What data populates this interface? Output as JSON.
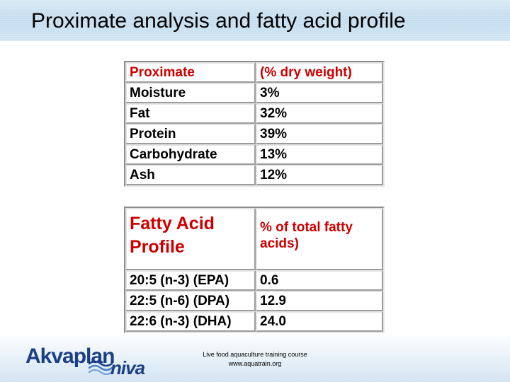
{
  "slide": {
    "title": "Proximate analysis and fatty acid profile"
  },
  "proximate_table": {
    "header": [
      "Proximate",
      "(% dry weight)"
    ],
    "rows": [
      [
        "Moisture",
        "3%"
      ],
      [
        "Fat",
        "32%"
      ],
      [
        "Protein",
        "39%"
      ],
      [
        "Carbohydrate",
        "13%"
      ],
      [
        "Ash",
        "12%"
      ]
    ]
  },
  "fatty_acid_table": {
    "header": [
      "Fatty Acid Profile",
      "% of total fatty acids)"
    ],
    "rows": [
      [
        "20:5 (n-3) (EPA)",
        "0.6"
      ],
      [
        "22:5 (n-6) (DPA)",
        "12.9"
      ],
      [
        "22:6 (n-3) (DHA)",
        "24.0"
      ]
    ]
  },
  "footer": {
    "line1": "Live food aquaculture training course",
    "line2": "www.aquatrain.org"
  },
  "logo": {
    "part1": "Akvaplan",
    "part2": "niva"
  },
  "colors": {
    "header_text": "#cc0000",
    "logo": "#1b3f86",
    "title_bar": "#c4dcee"
  }
}
